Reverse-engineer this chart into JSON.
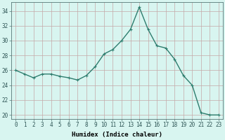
{
  "x": [
    0,
    1,
    2,
    3,
    4,
    5,
    6,
    7,
    8,
    9,
    10,
    11,
    12,
    13,
    14,
    15,
    16,
    17,
    18,
    19,
    20,
    21,
    22,
    23
  ],
  "y": [
    26,
    25.5,
    25,
    25.5,
    25.5,
    25.2,
    25,
    24.7,
    25.3,
    26.5,
    28.2,
    28.8,
    30,
    31.5,
    34.5,
    31.5,
    29.3,
    29,
    27.5,
    25.3,
    24,
    20.3,
    20,
    20
  ],
  "line_color": "#2e7d6e",
  "marker": "+",
  "marker_size": 3,
  "bg_color": "#d8f5f0",
  "grid_color": "#c4a8a8",
  "xlabel": "Humidex (Indice chaleur)",
  "ylim": [
    19.5,
    35.2
  ],
  "yticks": [
    20,
    22,
    24,
    26,
    28,
    30,
    32,
    34
  ],
  "xticks": [
    0,
    1,
    2,
    3,
    4,
    5,
    6,
    7,
    8,
    9,
    10,
    11,
    12,
    13,
    14,
    15,
    16,
    17,
    18,
    19,
    20,
    21,
    22,
    23
  ],
  "xlabel_fontsize": 6.5,
  "tick_fontsize": 5.5,
  "line_width": 1.0,
  "xlim": [
    -0.5,
    23.5
  ]
}
